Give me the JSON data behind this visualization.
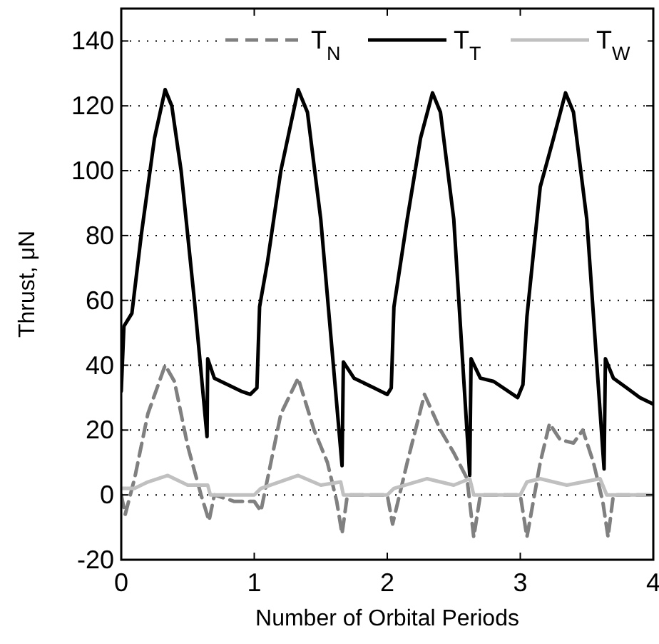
{
  "chart_data": {
    "type": "line",
    "xlabel": "Number of Orbital Periods",
    "ylabel": "Thrust, μN",
    "xlim": [
      0,
      4
    ],
    "ylim": [
      -20,
      150
    ],
    "xticks": [
      0,
      1,
      2,
      3,
      4
    ],
    "yticks": [
      -20,
      0,
      20,
      40,
      60,
      80,
      100,
      120,
      140
    ],
    "grid": "y",
    "legend": "top right",
    "marker": "none",
    "series": [
      {
        "name": "T$_{N}$",
        "color": "#808080",
        "line_style": "dashed",
        "x": [
          0,
          0.03,
          0.1,
          0.2,
          0.33,
          0.4,
          0.5,
          0.6,
          0.66,
          0.7,
          0.85,
          1.0,
          1.05,
          1.1,
          1.2,
          1.33,
          1.45,
          1.55,
          1.62,
          1.66,
          1.7,
          1.85,
          2.0,
          2.04,
          2.15,
          2.28,
          2.4,
          2.5,
          2.6,
          2.65,
          2.7,
          2.85,
          3.0,
          3.05,
          3.15,
          3.22,
          3.3,
          3.4,
          3.47,
          3.55,
          3.62,
          3.66,
          3.7,
          3.85,
          4.0
        ],
        "values": [
          0,
          -6,
          5,
          25,
          40,
          35,
          15,
          0,
          -8,
          0,
          -2,
          -2,
          -5,
          5,
          25,
          36,
          20,
          10,
          -2,
          -12,
          0,
          0,
          0,
          -9,
          10,
          31,
          20,
          13,
          5,
          -13,
          0,
          0,
          0,
          -13,
          10,
          22,
          17,
          16,
          20,
          10,
          -2,
          -13,
          0,
          0,
          0
        ]
      },
      {
        "name": "T$_{T}$",
        "color": "#000000",
        "line_style": "solid",
        "x": [
          0,
          0.02,
          0.08,
          0.15,
          0.25,
          0.33,
          0.38,
          0.45,
          0.55,
          0.645,
          0.65,
          0.7,
          0.8,
          0.9,
          0.97,
          1.02,
          1.04,
          1.1,
          1.2,
          1.33,
          1.4,
          1.5,
          1.66,
          1.67,
          1.75,
          1.9,
          2.0,
          2.03,
          2.05,
          2.15,
          2.25,
          2.34,
          2.4,
          2.5,
          2.62,
          2.63,
          2.7,
          2.8,
          2.98,
          3.02,
          3.05,
          3.15,
          3.25,
          3.34,
          3.4,
          3.5,
          3.63,
          3.64,
          3.7,
          3.8,
          3.9,
          4.0
        ],
        "values": [
          32,
          52,
          56,
          80,
          110,
          125,
          120,
          100,
          60,
          18,
          42,
          36,
          34,
          32,
          31,
          33,
          58,
          72,
          100,
          125,
          118,
          85,
          9,
          41,
          36,
          33,
          31,
          33,
          58,
          85,
          110,
          124,
          118,
          85,
          6,
          42,
          36,
          35,
          30,
          34,
          55,
          95,
          110,
          124,
          118,
          85,
          8,
          42,
          36,
          33,
          30,
          28
        ]
      },
      {
        "name": "T$_{W}$",
        "color": "#c0c0c0",
        "line_style": "solid",
        "x": [
          0,
          0.1,
          0.2,
          0.35,
          0.5,
          0.65,
          0.67,
          1.0,
          1.05,
          1.33,
          1.5,
          1.65,
          1.67,
          2.0,
          2.05,
          2.3,
          2.5,
          2.62,
          2.65,
          3.0,
          3.05,
          3.15,
          3.35,
          3.6,
          3.65,
          4.0
        ],
        "values": [
          2,
          2,
          4,
          6,
          3,
          3,
          0,
          0,
          2,
          6,
          3,
          4,
          0,
          0,
          2,
          5,
          3,
          5,
          0,
          0,
          4,
          5,
          3,
          5,
          0,
          0
        ]
      }
    ]
  }
}
